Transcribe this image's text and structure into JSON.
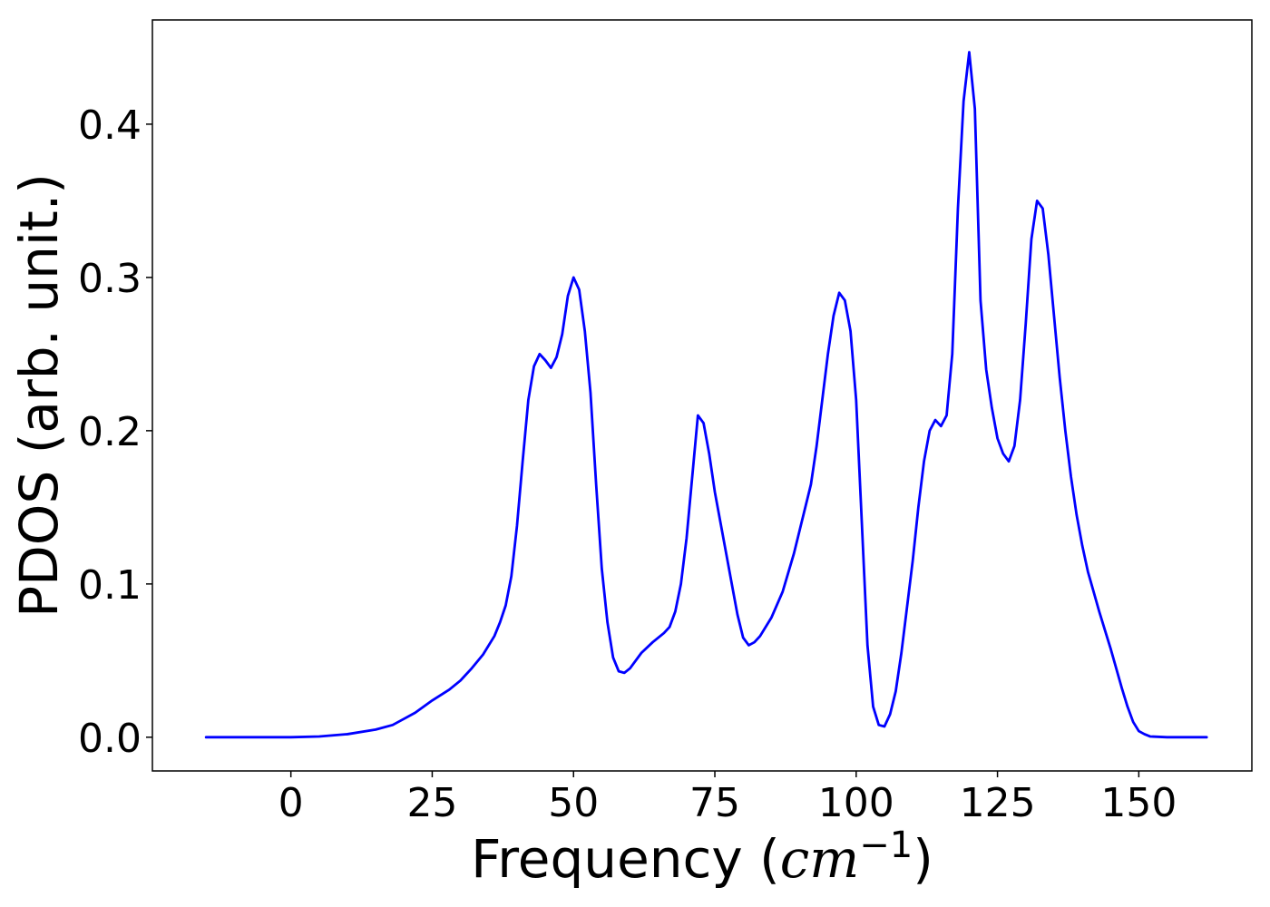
{
  "chart_data": {
    "type": "line",
    "xlabel_text": "Frequency (",
    "xlabel_math_base": "cm",
    "xlabel_math_exp": "−1",
    "xlabel_close": ")",
    "ylabel": "PDOS (arb. unit.)",
    "xlim": [
      -24.5,
      170
    ],
    "ylim": [
      -0.022,
      0.468
    ],
    "xticks": [
      0,
      25,
      50,
      75,
      100,
      125,
      150
    ],
    "yticks": [
      0.0,
      0.1,
      0.2,
      0.3,
      0.4
    ],
    "xtick_labels": [
      "0",
      "25",
      "50",
      "75",
      "100",
      "125",
      "150"
    ],
    "ytick_labels": [
      "0.0",
      "0.1",
      "0.2",
      "0.3",
      "0.4"
    ],
    "grid": false,
    "series": [
      {
        "color": "#0000ff",
        "x": [
          -15,
          0,
          5,
          10,
          15,
          18,
          20,
          22,
          25,
          28,
          30,
          32,
          34,
          36,
          37,
          38,
          39,
          40,
          41,
          42,
          43,
          44,
          45,
          46,
          47,
          48,
          49,
          50,
          51,
          52,
          53,
          54,
          55,
          56,
          57,
          58,
          59,
          60,
          62,
          64,
          66,
          67,
          68,
          69,
          70,
          71,
          72,
          73,
          74,
          75,
          76,
          77,
          78,
          79,
          80,
          81,
          82,
          83,
          85,
          87,
          89,
          90,
          91,
          92,
          93,
          94,
          95,
          96,
          97,
          98,
          99,
          100,
          101,
          102,
          103,
          104,
          105,
          106,
          107,
          108,
          109,
          110,
          111,
          112,
          113,
          114,
          115,
          116,
          117,
          118,
          119,
          120,
          121,
          122,
          123,
          124,
          125,
          126,
          127,
          128,
          129,
          130,
          131,
          132,
          133,
          134,
          135,
          136,
          137,
          138,
          139,
          140,
          141,
          142,
          143,
          144,
          145,
          146,
          147,
          148,
          149,
          150,
          151,
          152,
          155,
          162
        ],
        "y": [
          0.0,
          0.0,
          0.0005,
          0.002,
          0.005,
          0.008,
          0.012,
          0.016,
          0.024,
          0.031,
          0.037,
          0.045,
          0.054,
          0.066,
          0.075,
          0.086,
          0.105,
          0.138,
          0.18,
          0.22,
          0.242,
          0.25,
          0.246,
          0.241,
          0.248,
          0.263,
          0.288,
          0.3,
          0.292,
          0.265,
          0.225,
          0.165,
          0.11,
          0.075,
          0.052,
          0.043,
          0.042,
          0.045,
          0.055,
          0.062,
          0.068,
          0.072,
          0.082,
          0.1,
          0.13,
          0.17,
          0.21,
          0.205,
          0.185,
          0.16,
          0.14,
          0.12,
          0.1,
          0.08,
          0.065,
          0.06,
          0.062,
          0.066,
          0.078,
          0.095,
          0.12,
          0.135,
          0.15,
          0.165,
          0.19,
          0.22,
          0.25,
          0.275,
          0.29,
          0.285,
          0.265,
          0.22,
          0.14,
          0.06,
          0.02,
          0.008,
          0.007,
          0.015,
          0.03,
          0.055,
          0.085,
          0.115,
          0.15,
          0.18,
          0.2,
          0.207,
          0.203,
          0.21,
          0.25,
          0.345,
          0.415,
          0.447,
          0.41,
          0.285,
          0.24,
          0.215,
          0.195,
          0.185,
          0.18,
          0.19,
          0.22,
          0.27,
          0.325,
          0.35,
          0.345,
          0.315,
          0.275,
          0.235,
          0.2,
          0.17,
          0.145,
          0.125,
          0.108,
          0.095,
          0.082,
          0.07,
          0.058,
          0.045,
          0.032,
          0.02,
          0.01,
          0.004,
          0.002,
          0.0005,
          0.0,
          0.0
        ]
      }
    ]
  }
}
